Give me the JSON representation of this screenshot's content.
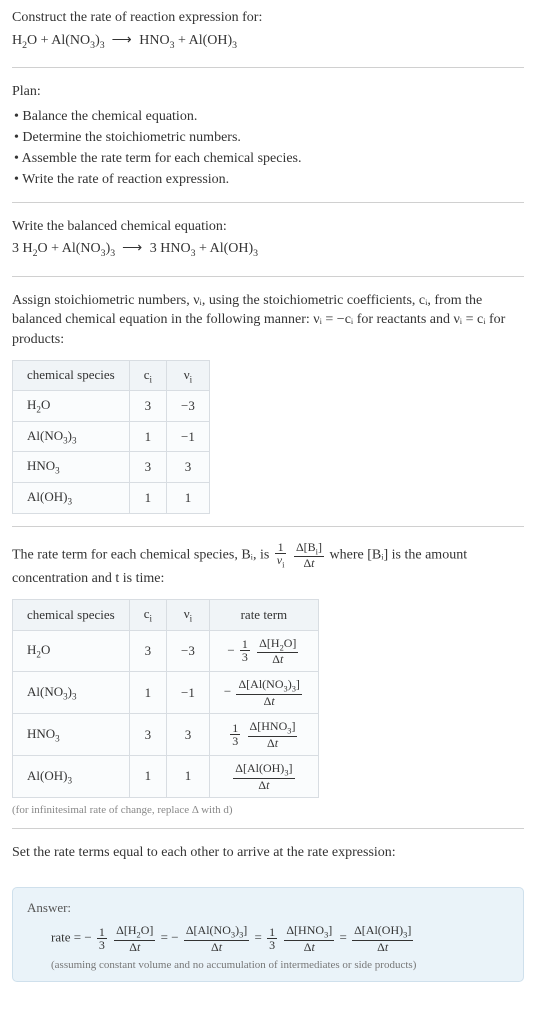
{
  "intro": {
    "l1": "Construct the rate of reaction expression for:",
    "eq_plain": "H₂O + Al(NO₃)₃  ⟶  HNO₃ + Al(OH)₃"
  },
  "plan": {
    "title": "Plan:",
    "items": [
      "Balance the chemical equation.",
      "Determine the stoichiometric numbers.",
      "Assemble the rate term for each chemical species.",
      "Write the rate of reaction expression."
    ]
  },
  "balanced": {
    "l1": "Write the balanced chemical equation:",
    "eq_plain": "3 H₂O + Al(NO₃)₃  ⟶  3 HNO₃ + Al(OH)₃"
  },
  "assign": {
    "text": "Assign stoichiometric numbers, νᵢ, using the stoichiometric coefficients, cᵢ, from the balanced chemical equation in the following manner: νᵢ = −cᵢ for reactants and νᵢ = cᵢ for products:"
  },
  "table1": {
    "headers": [
      "chemical species",
      "cᵢ",
      "νᵢ"
    ],
    "rows": [
      [
        "H₂O",
        "3",
        "−3"
      ],
      [
        "Al(NO₃)₃",
        "1",
        "−1"
      ],
      [
        "HNO₃",
        "3",
        "3"
      ],
      [
        "Al(OH)₃",
        "1",
        "1"
      ]
    ]
  },
  "rateterm": {
    "pre": "The rate term for each chemical species, Bᵢ, is ",
    "post": " where [Bᵢ] is the amount concentration and t is time:",
    "frac1_num": "1",
    "frac1_den": "νᵢ",
    "frac2_num": "Δ[Bᵢ]",
    "frac2_den": "Δt"
  },
  "table2": {
    "headers": [
      "chemical species",
      "cᵢ",
      "νᵢ",
      "rate term"
    ],
    "rows": [
      {
        "sp": "H₂O",
        "c": "3",
        "v": "−3",
        "neg": "−",
        "coef_num": "1",
        "coef_den": "3",
        "num": "Δ[H₂O]",
        "den": "Δt"
      },
      {
        "sp": "Al(NO₃)₃",
        "c": "1",
        "v": "−1",
        "neg": "−",
        "coef_num": "",
        "coef_den": "",
        "num": "Δ[Al(NO₃)₃]",
        "den": "Δt"
      },
      {
        "sp": "HNO₃",
        "c": "3",
        "v": "3",
        "neg": "",
        "coef_num": "1",
        "coef_den": "3",
        "num": "Δ[HNO₃]",
        "den": "Δt"
      },
      {
        "sp": "Al(OH)₃",
        "c": "1",
        "v": "1",
        "neg": "",
        "coef_num": "",
        "coef_den": "",
        "num": "Δ[Al(OH)₃]",
        "den": "Δt"
      }
    ],
    "note": "(for infinitesimal rate of change, replace Δ with d)"
  },
  "final": {
    "text": "Set the rate terms equal to each other to arrive at the rate expression:"
  },
  "answer": {
    "title": "Answer:",
    "lead": "rate = ",
    "terms": [
      {
        "neg": "−",
        "coef_num": "1",
        "coef_den": "3",
        "num": "Δ[H₂O]",
        "den": "Δt"
      },
      {
        "neg": "−",
        "coef_num": "",
        "coef_den": "",
        "num": "Δ[Al(NO₃)₃]",
        "den": "Δt"
      },
      {
        "neg": "",
        "coef_num": "1",
        "coef_den": "3",
        "num": "Δ[HNO₃]",
        "den": "Δt"
      },
      {
        "neg": "",
        "coef_num": "",
        "coef_den": "",
        "num": "Δ[Al(OH)₃]",
        "den": "Δt"
      }
    ],
    "eq_sep": " = ",
    "note": "(assuming constant volume and no accumulation of intermediates or side products)"
  },
  "colors": {
    "answer_bg": "#eaf3f9",
    "answer_border": "#cfe0ec",
    "table_border": "#d8dde2",
    "table_header_bg": "#f0f4f7"
  }
}
